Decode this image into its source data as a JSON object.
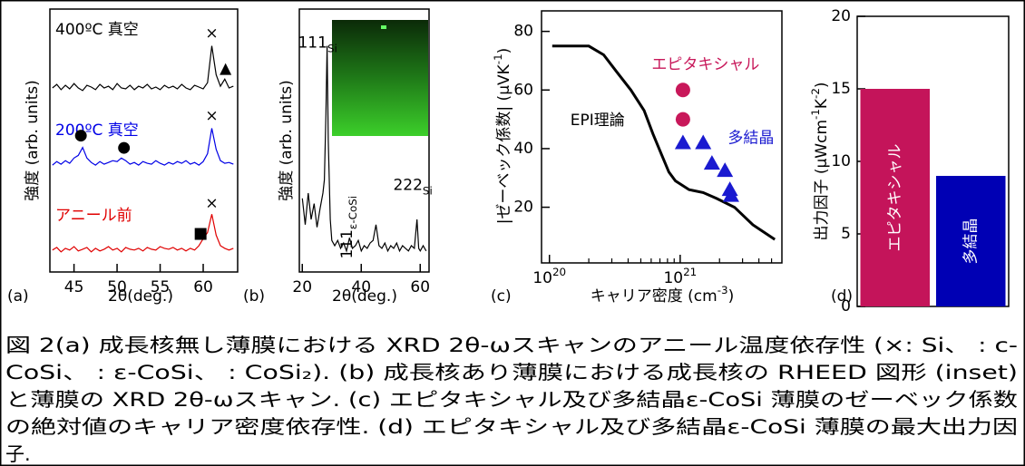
{
  "chart_data": [
    {
      "type": "line",
      "panel_label": "(a)",
      "x_label": "2θ(deg.)",
      "y_label": "強度 (arb. units)",
      "xlim": [
        42.2,
        64
      ],
      "ylim": [
        0,
        3
      ],
      "xticks": [
        45,
        50,
        55,
        60
      ],
      "x": [
        42.5,
        43,
        43.5,
        44,
        44.5,
        45,
        45.5,
        46,
        46.5,
        47,
        47.5,
        48,
        48.5,
        49,
        49.5,
        50,
        50.5,
        51,
        51.5,
        52,
        52.5,
        53,
        53.5,
        54,
        54.5,
        55,
        55.5,
        56,
        56.5,
        57,
        57.5,
        58,
        58.5,
        59,
        59.5,
        60,
        60.5,
        61,
        61.5,
        62,
        62.5,
        63,
        63.5
      ],
      "series": [
        {
          "name": "アニール前",
          "color": "#e00000",
          "values": [
            0.25,
            0.28,
            0.23,
            0.27,
            0.25,
            0.29,
            0.24,
            0.26,
            0.28,
            0.23,
            0.27,
            0.24,
            0.26,
            0.29,
            0.25,
            0.27,
            0.23,
            0.28,
            0.26,
            0.25,
            0.27,
            0.24,
            0.28,
            0.26,
            0.25,
            0.29,
            0.27,
            0.26,
            0.28,
            0.25,
            0.27,
            0.24,
            0.27,
            0.25,
            0.3,
            0.38,
            0.45,
            0.66,
            0.42,
            0.3,
            0.27,
            0.25,
            0.27
          ]
        },
        {
          "name": "200ºC 真空",
          "color": "#0000e6",
          "values": [
            1.22,
            1.26,
            1.23,
            1.27,
            1.24,
            1.3,
            1.33,
            1.42,
            1.3,
            1.25,
            1.22,
            1.26,
            1.23,
            1.25,
            1.27,
            1.26,
            1.3,
            1.27,
            1.23,
            1.25,
            1.22,
            1.26,
            1.24,
            1.23,
            1.27,
            1.24,
            1.22,
            1.25,
            1.23,
            1.26,
            1.24,
            1.27,
            1.23,
            1.25,
            1.22,
            1.26,
            1.35,
            1.64,
            1.4,
            1.27,
            1.24,
            1.25,
            1.23
          ]
        },
        {
          "name": "400ºC 真空",
          "color": "#000000",
          "values": [
            2.1,
            2.14,
            2.08,
            2.13,
            2.09,
            2.15,
            2.1,
            2.07,
            2.13,
            2.11,
            2.08,
            2.14,
            2.1,
            2.12,
            2.08,
            2.15,
            2.1,
            2.09,
            2.13,
            2.08,
            2.12,
            2.1,
            2.14,
            2.09,
            2.11,
            2.08,
            2.13,
            2.1,
            2.12,
            2.09,
            2.14,
            2.1,
            2.08,
            2.13,
            2.11,
            2.09,
            2.16,
            2.58,
            2.25,
            2.12,
            2.2,
            2.1,
            2.12
          ]
        }
      ],
      "annotations": [
        {
          "text": "×",
          "x": 61,
          "y": 2.72
        },
        {
          "text": "▲",
          "x": 62.6,
          "y": 2.32
        },
        {
          "text": "●",
          "x": 45.8,
          "y": 1.56
        },
        {
          "text": "●",
          "x": 50.8,
          "y": 1.42
        },
        {
          "text": "×",
          "x": 61,
          "y": 1.78
        },
        {
          "text": "■",
          "x": 59.7,
          "y": 0.44
        },
        {
          "text": "×",
          "x": 61,
          "y": 0.78
        }
      ]
    },
    {
      "type": "line",
      "panel_label": "(b)",
      "x_label": "2θ(deg.)",
      "y_label": "強度 (arb. units)",
      "xlim": [
        19,
        63
      ],
      "ylim": [
        0,
        1
      ],
      "xticks": [
        20,
        40,
        60
      ],
      "x": [
        20,
        21,
        22,
        23,
        24,
        25,
        26,
        27,
        27.5,
        28,
        28.4,
        28.8,
        29.5,
        30,
        31,
        32,
        33,
        34,
        35,
        36,
        37,
        38,
        39,
        40,
        41,
        42,
        43,
        44,
        45,
        46,
        47,
        48,
        49,
        50,
        51,
        52,
        53,
        54,
        55,
        56,
        57,
        58,
        58.9,
        59.5,
        60,
        61,
        62
      ],
      "series": [
        {
          "color": "#000000",
          "values": [
            0.28,
            0.18,
            0.3,
            0.2,
            0.26,
            0.17,
            0.24,
            0.3,
            0.35,
            0.6,
            0.86,
            0.5,
            0.2,
            0.12,
            0.1,
            0.12,
            0.09,
            0.11,
            0.08,
            0.13,
            0.09,
            0.1,
            0.12,
            0.08,
            0.1,
            0.09,
            0.11,
            0.12,
            0.18,
            0.1,
            0.09,
            0.11,
            0.08,
            0.1,
            0.09,
            0.11,
            0.08,
            0.1,
            0.09,
            0.08,
            0.1,
            0.09,
            0.2,
            0.09,
            0.08,
            0.1,
            0.08
          ]
        }
      ],
      "annotations": [
        {
          "text": "111",
          "sub": "Si",
          "x": 25.2,
          "y": 0.87
        },
        {
          "text": "111",
          "sub": "ε-CoSi",
          "x": 35.3,
          "y": 0.17,
          "vertical": true
        },
        {
          "text": "222",
          "sub": "Si",
          "x": 57.5,
          "y": 0.33
        }
      ]
    },
    {
      "type": "scatter",
      "panel_label": "(c)",
      "xscale": "log",
      "x_label": [
        "キャリア密度 (cm",
        "-3",
        ")"
      ],
      "y_label": [
        "|ゼーベック係数| (μVK",
        "-1",
        ")"
      ],
      "xlim": [
        8.7e+19,
        6e+21
      ],
      "ylim": [
        1,
        87
      ],
      "xticks": [
        {
          "value": 1e+20,
          "label": "10",
          "sup": "20"
        },
        {
          "value": 1e+21,
          "label": "10",
          "sup": "21"
        }
      ],
      "xminorticks": [
        2e+20,
        3e+20,
        4e+20,
        5e+20,
        6e+20,
        7e+20,
        8e+20,
        9e+20,
        2e+21,
        3e+21,
        4e+21,
        5e+21
      ],
      "yticks": [
        20,
        40,
        60,
        80
      ],
      "series": [
        {
          "name": "EPI理論",
          "color": "#000000",
          "x": [
            1.05e+20,
            2e+20,
            2.6e+20,
            3.3e+20,
            4.2e+20,
            5.3e+20,
            6.2e+20,
            7.2e+20,
            8.2e+20,
            9.2e+20,
            1.17e+21,
            1.5e+21,
            1.9e+21,
            2.6e+21,
            3.6e+21,
            5.3e+21
          ],
          "values": [
            75,
            75,
            72,
            66,
            60,
            53,
            45,
            38,
            32,
            29,
            26,
            25,
            23,
            20,
            14,
            9
          ]
        },
        {
          "name": "エピタキシャル",
          "color": "#c8185a",
          "marker": "circle",
          "x": [
            1.05e+21,
            1.05e+21
          ],
          "values": [
            60,
            50
          ]
        },
        {
          "name": "多結晶",
          "color": "#1a1ad0",
          "marker": "triangle",
          "x": [
            1.05e+21,
            1.5e+21,
            1.75e+21,
            2.2e+21,
            2.4e+21,
            2.45e+21
          ],
          "values": [
            42,
            42,
            35,
            32.5,
            26,
            24
          ]
        }
      ]
    },
    {
      "type": "bar",
      "panel_label": "(d)",
      "y_label": [
        "出力因子 (μWcm",
        "-1",
        "K",
        "-2",
        ")"
      ],
      "categories": [
        "エピタキシャル",
        "多結晶"
      ],
      "values": [
        15,
        9
      ],
      "colors": [
        "#c4145a",
        "#0000b4"
      ],
      "ylim": [
        0,
        20
      ],
      "yticks": [
        0,
        5,
        10,
        15,
        20
      ]
    }
  ],
  "caption": [
    "図 2(a) 成長核無し薄膜における XRD 2θ-ωスキャンのアニール温度依存性 (×: Si、  : c-",
    "CoSi、  : ε-CoSi、  : CoSi₂). (b) 成長核あり薄膜における成長核の RHEED 図形 (inset)",
    "と薄膜の XRD 2θ-ωスキャン. (c) エピタキシャル及び多結晶ε-CoSi 薄膜のゼーベック係数",
    "の絶対値のキャリア密度依存性. (d) エピタキシャル及び多結晶ε-CoSi 薄膜の最大出力因",
    "子."
  ]
}
